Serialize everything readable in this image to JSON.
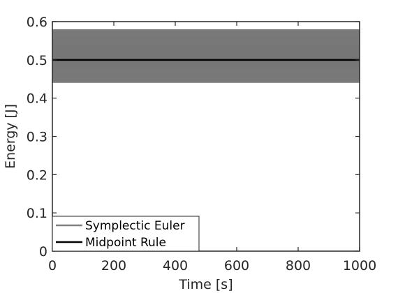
{
  "chart_data": {
    "type": "line",
    "xlabel": "Time [s]",
    "ylabel": "Energy [J]",
    "xlim": [
      0,
      1000
    ],
    "ylim": [
      0,
      0.6
    ],
    "xticks": [
      0,
      200,
      400,
      600,
      800,
      1000
    ],
    "yticks": [
      0,
      0.1,
      0.2,
      0.3,
      0.4,
      0.5,
      0.6
    ],
    "xtick_labels": [
      "0",
      "200",
      "400",
      "600",
      "800",
      "1000"
    ],
    "ytick_labels": [
      "0",
      "0.1",
      "0.2",
      "0.3",
      "0.4",
      "0.5",
      "0.6"
    ],
    "grid": false,
    "legend": {
      "position": "bottom-left",
      "entries": [
        "Symplectic Euler",
        "Midpoint Rule"
      ]
    },
    "series": [
      {
        "name": "Symplectic Euler",
        "color": "#808080",
        "style": "oscillating band",
        "x": [
          0,
          1000
        ],
        "y_min": [
          0.44,
          0.44
        ],
        "y_max": [
          0.58,
          0.58
        ]
      },
      {
        "name": "Midpoint Rule",
        "color": "#000000",
        "style": "solid line",
        "x": [
          0,
          1000
        ],
        "y": [
          0.5,
          0.5
        ]
      }
    ]
  }
}
